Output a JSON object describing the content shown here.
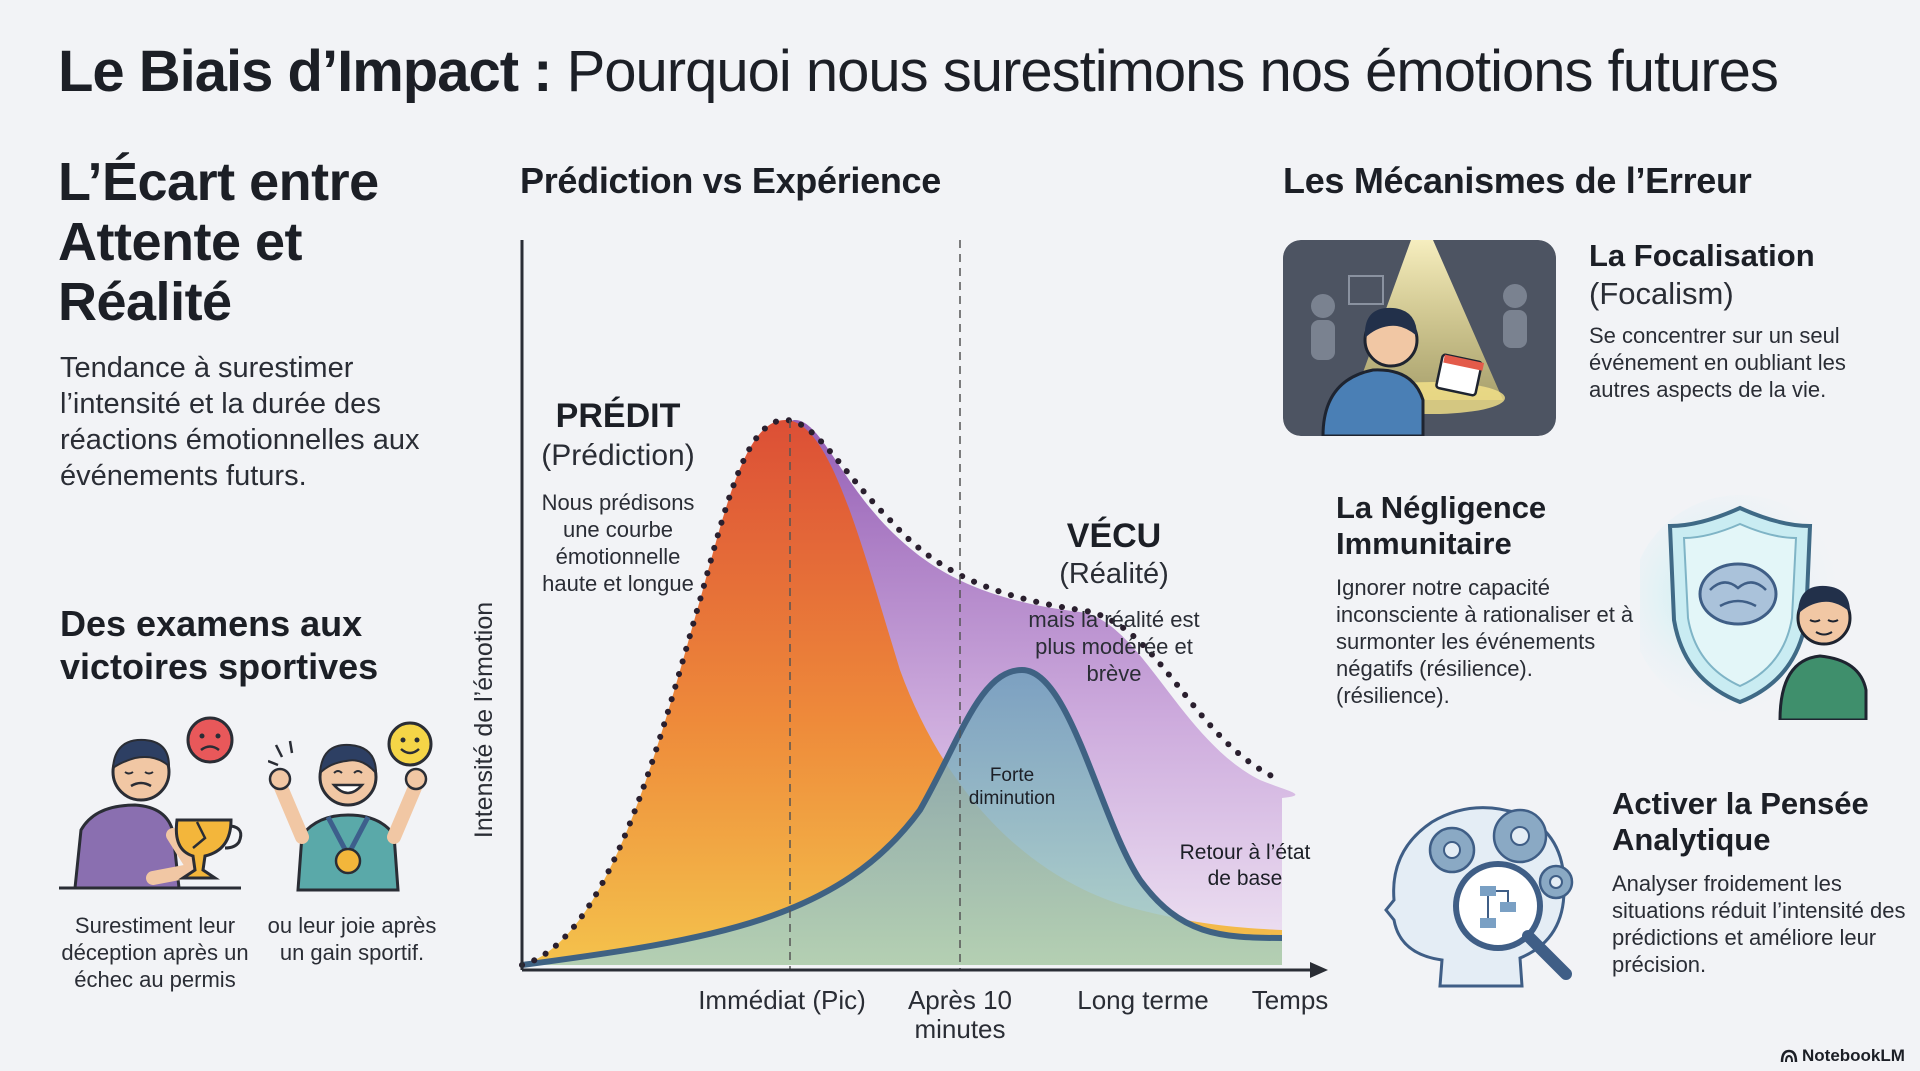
{
  "title": {
    "bold": "Le Biais d’Impact :",
    "rest": "Pourquoi nous surestimons nos émotions futures"
  },
  "left": {
    "heading": "L’Écart entre Attente et Réalité",
    "description": "Tendance à surestimer l’intensité et la durée des réactions émotionnelles aux événements futurs.",
    "examples_heading": "Des examens aux victoires sportives",
    "caption_sad": "Surestiment leur déception après un échec au permis",
    "caption_happy": "ou leur joie après un gain sportif."
  },
  "chart": {
    "title": "Prédiction vs Expérience",
    "ylabel": "Intensité de l’émotion",
    "xlabel": "Temps",
    "x_ticks": [
      "Immédiat (Pic)",
      "Après 10",
      "minutes",
      "Long terme"
    ],
    "predicted": {
      "label": "PRÉDIT",
      "sub": "(Prédiction)",
      "desc": [
        "Nous prédisons",
        "une courbe",
        "émotionnelle",
        "haute et longue"
      ]
    },
    "experienced": {
      "label": "VÉCU",
      "sub": "(Réalité)",
      "desc": [
        "mais la réalité est",
        "plus modérée et",
        "brève"
      ]
    },
    "annotation_drop": [
      "Forte",
      "diminution"
    ],
    "annotation_baseline": [
      "Retour à l’état",
      "de base"
    ]
  },
  "mechanisms": {
    "heading": "Les Mécanismes de l’Erreur",
    "focalisation": {
      "title": "La Focalisation",
      "subtitle": "(Focalism)",
      "description": "Se concentrer sur un seul événement en oubliant les autres aspects de la vie."
    },
    "negligence": {
      "title": "La Négligence Immunitaire",
      "description": "Ignorer notre capacité inconsciente à rationaliser et à surmonter les événements négatifs (résilience). (résilience)."
    },
    "analytique": {
      "title": "Activer la Pensée Analytique",
      "description": "Analyser froidement les situations réduit l’intensité des prédictions et améliore leur précision."
    }
  },
  "brand": "NotebookLM",
  "colors": {
    "predicted_top": "#e05a3a",
    "predicted_bottom": "#f2b845",
    "experienced_line": "#3f6283",
    "dotted": "#2a1f2e",
    "purple": "#9b62b8"
  }
}
